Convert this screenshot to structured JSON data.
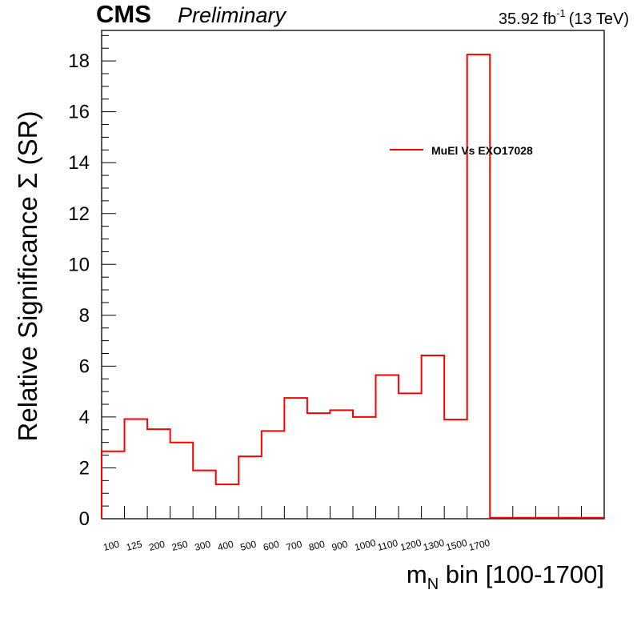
{
  "header": {
    "experiment": "CMS",
    "status": "Preliminary",
    "lumi_value": "35.92 fb",
    "lumi_exp": "-1",
    "energy": "(13 TeV)"
  },
  "chart_data": {
    "type": "histogram-step",
    "xlabel_main": "m",
    "xlabel_sub": "N",
    "xlabel_rest": " bin [100-1700]",
    "ylabel": "Relative Significance  Σ (SR)",
    "ylim": [
      0,
      19.2
    ],
    "yticks": [
      0,
      2,
      4,
      6,
      8,
      10,
      12,
      14,
      16,
      18
    ],
    "grid": false,
    "legend_position": "top-right",
    "categories": [
      "100",
      "125",
      "200",
      "250",
      "300",
      "400",
      "500",
      "600",
      "700",
      "800",
      "900",
      "1000",
      "1100",
      "1200",
      "1300",
      "1500",
      "1700",
      "",
      "",
      "",
      "",
      ""
    ],
    "series": [
      {
        "name": "MuEl Vs EXO17028",
        "color": "#ff0000",
        "values": [
          2.65,
          3.92,
          3.52,
          3.0,
          1.9,
          1.35,
          2.45,
          3.45,
          4.75,
          4.15,
          4.27,
          4.0,
          5.65,
          4.93,
          6.42,
          3.9,
          18.25,
          0.04,
          0.04,
          0.04,
          0.04,
          0.04
        ]
      }
    ]
  }
}
